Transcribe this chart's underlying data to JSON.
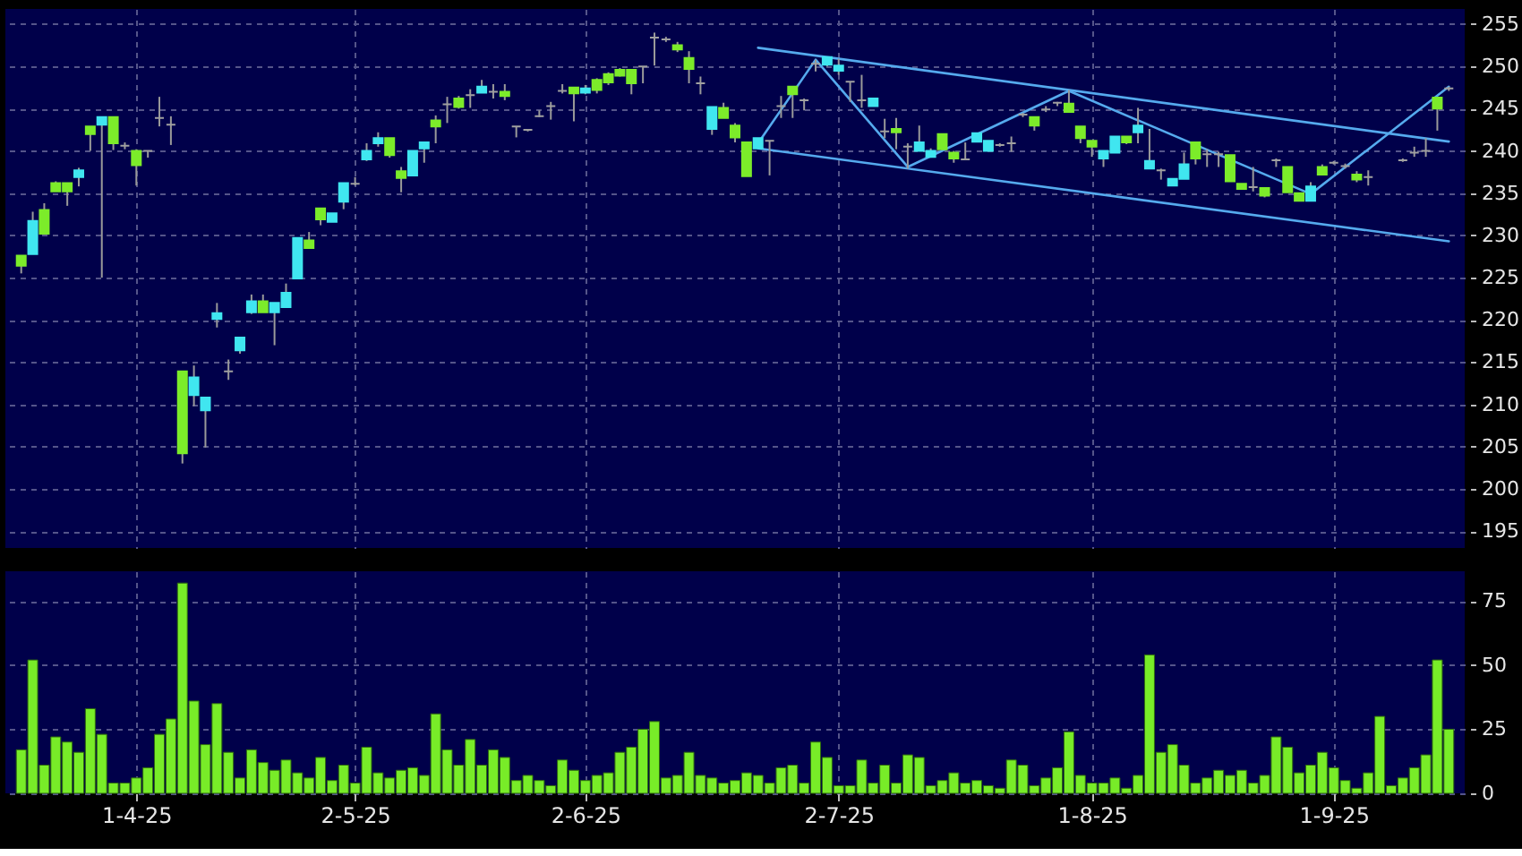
{
  "chart_data": [
    {
      "type": "candlestick",
      "categories": [
        null,
        null,
        null,
        null,
        null,
        null,
        null,
        null,
        null,
        null,
        null,
        null,
        null,
        null,
        null,
        null,
        null,
        null,
        null,
        null,
        null,
        null,
        null,
        null,
        null,
        null,
        null,
        null,
        null,
        null,
        null,
        null,
        null,
        null,
        null,
        null,
        null,
        null,
        null,
        null,
        null,
        null,
        null,
        null,
        null,
        null,
        null,
        null,
        null,
        null,
        null,
        null,
        null,
        null,
        null,
        null,
        null,
        null,
        null,
        null,
        null,
        null,
        null,
        null,
        null,
        null,
        null,
        null,
        null,
        null,
        null,
        null,
        null,
        null,
        null,
        null,
        null,
        null,
        null,
        null,
        null,
        null,
        null,
        null,
        null,
        null,
        null,
        null,
        null,
        null,
        null,
        null,
        null,
        null,
        null,
        null,
        null,
        null,
        null,
        null,
        null,
        null,
        null,
        null,
        null,
        null,
        null,
        null,
        null,
        null,
        null,
        null,
        null,
        null,
        null,
        null,
        null,
        null,
        null,
        null,
        null,
        null,
        null,
        null,
        null
      ],
      "ohlc": [
        [
          227.6,
          227.6,
          225.5,
          226.4
        ],
        [
          227.8,
          232.8,
          227.8,
          231.7
        ],
        [
          233.0,
          233.8,
          230.2,
          230.2
        ],
        [
          236.2,
          236.4,
          235.2,
          235.2
        ],
        [
          236.2,
          236.2,
          233.5,
          235.2
        ],
        [
          236.9,
          238.0,
          235.8,
          237.7
        ],
        [
          242.9,
          242.9,
          240.0,
          242.0
        ],
        [
          243.1,
          244.0,
          225.0,
          244.0
        ],
        [
          244.0,
          244.0,
          240.1,
          240.9
        ],
        [
          240.6,
          241.0,
          240.2,
          240.6
        ],
        [
          240.0,
          240.2,
          235.9,
          238.3
        ],
        [
          240.0,
          240.0,
          239.2,
          240.0
        ],
        [
          243.9,
          246.4,
          242.9,
          243.9
        ],
        [
          243.1,
          244.1,
          240.7,
          243.1
        ],
        [
          213.9,
          213.9,
          203.0,
          204.2
        ],
        [
          211.1,
          214.6,
          209.8,
          213.2
        ],
        [
          209.3,
          210.8,
          204.9,
          210.8
        ],
        [
          220.1,
          222.0,
          219.1,
          220.8
        ],
        [
          213.9,
          215.3,
          212.9,
          213.9
        ],
        [
          216.4,
          217.9,
          216.0,
          217.9
        ],
        [
          220.9,
          223.0,
          220.7,
          222.2
        ],
        [
          222.2,
          223.0,
          220.9,
          220.9
        ],
        [
          220.9,
          222.0,
          217.0,
          222.0
        ],
        [
          221.5,
          224.3,
          221.5,
          223.2
        ],
        [
          224.9,
          229.7,
          224.9,
          229.7
        ],
        [
          229.4,
          230.4,
          228.5,
          228.5
        ],
        [
          233.2,
          233.2,
          231.2,
          231.9
        ],
        [
          231.6,
          232.6,
          231.6,
          232.6
        ],
        [
          234.0,
          236.2,
          233.1,
          236.2
        ],
        [
          236.1,
          236.9,
          235.9,
          236.1
        ],
        [
          239.0,
          240.9,
          238.8,
          240.0
        ],
        [
          240.9,
          242.2,
          240.5,
          241.5
        ],
        [
          241.5,
          241.5,
          239.2,
          239.5
        ],
        [
          237.6,
          238.1,
          235.1,
          236.8
        ],
        [
          237.1,
          240.0,
          237.0,
          240.0
        ],
        [
          240.3,
          241.0,
          238.6,
          241.0
        ],
        [
          243.6,
          244.2,
          240.9,
          242.9
        ],
        [
          245.5,
          246.4,
          243.3,
          245.5
        ],
        [
          246.2,
          246.5,
          245.0,
          245.2
        ],
        [
          246.6,
          247.3,
          245.1,
          246.6
        ],
        [
          246.9,
          248.4,
          246.9,
          247.6
        ],
        [
          247.0,
          247.9,
          246.2,
          247.0
        ],
        [
          247.0,
          247.9,
          246.0,
          246.5
        ],
        [
          242.9,
          242.9,
          241.6,
          242.9
        ],
        [
          242.5,
          242.6,
          242.3,
          242.5
        ],
        [
          244.1,
          244.8,
          244.0,
          244.1
        ],
        [
          245.3,
          245.8,
          243.7,
          245.3
        ],
        [
          247.1,
          247.9,
          246.8,
          247.1
        ],
        [
          247.5,
          247.5,
          243.5,
          246.8
        ],
        [
          246.9,
          247.8,
          246.7,
          247.4
        ],
        [
          248.4,
          248.6,
          246.8,
          247.2
        ],
        [
          249.1,
          249.3,
          247.8,
          248.1
        ],
        [
          249.6,
          249.8,
          248.8,
          248.9
        ],
        [
          249.6,
          249.6,
          246.7,
          248.0
        ],
        [
          250.0,
          250.0,
          248.0,
          250.0
        ],
        [
          253.4,
          254.0,
          250.1,
          253.4
        ],
        [
          253.2,
          253.5,
          252.9,
          253.2
        ],
        [
          252.5,
          252.9,
          251.7,
          252.0
        ],
        [
          251.0,
          251.8,
          248.0,
          249.7
        ],
        [
          248.0,
          248.8,
          246.7,
          248.0
        ],
        [
          242.6,
          245.2,
          241.9,
          245.2
        ],
        [
          245.1,
          245.7,
          243.9,
          243.9
        ],
        [
          243.0,
          243.3,
          241.0,
          241.6
        ],
        [
          241.0,
          241.0,
          237.0,
          237.0
        ],
        [
          240.3,
          241.5,
          240.3,
          241.5
        ],
        [
          241.2,
          241.2,
          237.1,
          241.2
        ],
        [
          245.3,
          246.5,
          243.9,
          245.3
        ],
        [
          247.6,
          247.6,
          243.9,
          246.7
        ],
        [
          246.0,
          246.2,
          244.8,
          246.0
        ],
        [
          250.3,
          250.8,
          249.4,
          250.3
        ],
        [
          250.2,
          251.1,
          250.0,
          251.1
        ],
        [
          249.5,
          250.9,
          249.0,
          250.1
        ],
        [
          248.2,
          248.2,
          245.8,
          248.2
        ],
        [
          246.0,
          249.0,
          245.1,
          246.0
        ],
        [
          245.3,
          246.2,
          245.3,
          246.2
        ],
        [
          242.3,
          243.8,
          241.5,
          242.3
        ],
        [
          242.6,
          243.9,
          240.2,
          242.2
        ],
        [
          240.5,
          240.9,
          237.9,
          240.5
        ],
        [
          240.0,
          243.0,
          240.0,
          241.0
        ],
        [
          239.3,
          240.3,
          239.2,
          240.0
        ],
        [
          242.0,
          242.0,
          240.2,
          240.2
        ],
        [
          239.8,
          240.0,
          238.6,
          239.1
        ],
        [
          239.0,
          241.0,
          239.0,
          239.0
        ],
        [
          241.1,
          242.1,
          241.1,
          242.1
        ],
        [
          240.0,
          241.2,
          240.0,
          241.2
        ],
        [
          240.7,
          240.9,
          240.5,
          240.7
        ],
        [
          240.9,
          241.7,
          239.9,
          240.9
        ],
        [
          244.3,
          244.5,
          244.0,
          244.3
        ],
        [
          244.0,
          244.0,
          242.4,
          243.0
        ],
        [
          244.9,
          245.3,
          244.6,
          244.9
        ],
        [
          245.7,
          245.8,
          245.3,
          245.7
        ],
        [
          245.6,
          247.2,
          244.6,
          244.6
        ],
        [
          242.9,
          242.9,
          240.9,
          241.5
        ],
        [
          241.2,
          241.2,
          239.3,
          240.5
        ],
        [
          239.1,
          240.0,
          238.1,
          240.0
        ],
        [
          239.8,
          241.7,
          239.8,
          241.7
        ],
        [
          241.7,
          241.7,
          240.8,
          241.0
        ],
        [
          242.2,
          245.1,
          240.9,
          243.0
        ],
        [
          237.9,
          242.6,
          237.9,
          238.8
        ],
        [
          237.7,
          237.9,
          236.6,
          237.7
        ],
        [
          235.9,
          236.7,
          235.9,
          236.7
        ],
        [
          236.7,
          239.8,
          236.7,
          238.4
        ],
        [
          241.0,
          241.0,
          238.4,
          239.1
        ],
        [
          239.6,
          240.2,
          238.1,
          239.6
        ],
        [
          239.6,
          239.9,
          238.1,
          239.6
        ],
        [
          239.5,
          239.5,
          236.4,
          236.4
        ],
        [
          236.1,
          236.1,
          235.5,
          235.5
        ],
        [
          235.7,
          238.1,
          235.2,
          235.7
        ],
        [
          235.6,
          235.6,
          234.5,
          234.7
        ],
        [
          238.9,
          239.1,
          238.1,
          238.9
        ],
        [
          238.1,
          238.1,
          235.1,
          235.1
        ],
        [
          235.0,
          235.0,
          234.1,
          234.1
        ],
        [
          234.1,
          236.3,
          234.1,
          235.8
        ],
        [
          238.1,
          238.4,
          237.2,
          237.2
        ],
        [
          238.6,
          238.8,
          238.4,
          238.6
        ],
        [
          238.2,
          238.5,
          237.9,
          238.2
        ],
        [
          237.2,
          237.6,
          236.3,
          236.6
        ],
        [
          236.9,
          237.7,
          235.9,
          236.9
        ],
        null,
        null,
        [
          238.9,
          239.1,
          238.7,
          238.9
        ],
        [
          239.8,
          240.5,
          239.3,
          239.8
        ],
        [
          240.0,
          241.5,
          239.3,
          240.0
        ],
        [
          246.3,
          246.3,
          242.4,
          245.0
        ],
        [
          247.4,
          247.6,
          247.1,
          247.4
        ]
      ],
      "colors": [
        "#7cec2a",
        "#40e6f0",
        "#7cec2a",
        "#7cec2a",
        "#7cec2a",
        "#40e6f0",
        "#7cec2a",
        "#40e6f0",
        "#7cec2a",
        "#a0a0a0",
        "#7cec2a",
        "#a0a0a0",
        "#a0a0a0",
        "#a0a0a0",
        "#7cec2a",
        "#40e6f0",
        "#40e6f0",
        "#40e6f0",
        "#a0a0a0",
        "#40e6f0",
        "#40e6f0",
        "#7cec2a",
        "#40e6f0",
        "#40e6f0",
        "#40e6f0",
        "#7cec2a",
        "#7cec2a",
        "#40e6f0",
        "#40e6f0",
        "#a0a0a0",
        "#40e6f0",
        "#40e6f0",
        "#7cec2a",
        "#7cec2a",
        "#40e6f0",
        "#40e6f0",
        "#7cec2a",
        "#a0a0a0",
        "#7cec2a",
        "#a0a0a0",
        "#40e6f0",
        "#a0a0a0",
        "#7cec2a",
        "#a0a0a0",
        "#a0a0a0",
        "#a0a0a0",
        "#a0a0a0",
        "#a0a0a0",
        "#7cec2a",
        "#40e6f0",
        "#7cec2a",
        "#7cec2a",
        "#7cec2a",
        "#7cec2a",
        "#a0a0a0",
        "#a0a0a0",
        "#a0a0a0",
        "#7cec2a",
        "#7cec2a",
        "#a0a0a0",
        "#40e6f0",
        "#7cec2a",
        "#7cec2a",
        "#7cec2a",
        "#40e6f0",
        "#a0a0a0",
        "#a0a0a0",
        "#7cec2a",
        "#a0a0a0",
        "#a0a0a0",
        "#40e6f0",
        "#40e6f0",
        "#a0a0a0",
        "#a0a0a0",
        "#40e6f0",
        "#a0a0a0",
        "#7cec2a",
        "#a0a0a0",
        "#40e6f0",
        "#40e6f0",
        "#7cec2a",
        "#7cec2a",
        "#a0a0a0",
        "#40e6f0",
        "#40e6f0",
        "#a0a0a0",
        "#a0a0a0",
        "#a0a0a0",
        "#7cec2a",
        "#a0a0a0",
        "#a0a0a0",
        "#7cec2a",
        "#7cec2a",
        "#7cec2a",
        "#40e6f0",
        "#40e6f0",
        "#7cec2a",
        "#40e6f0",
        "#40e6f0",
        "#a0a0a0",
        "#40e6f0",
        "#40e6f0",
        "#7cec2a",
        "#a0a0a0",
        "#a0a0a0",
        "#7cec2a",
        "#7cec2a",
        "#a0a0a0",
        "#7cec2a",
        "#a0a0a0",
        "#7cec2a",
        "#7cec2a",
        "#40e6f0",
        "#7cec2a",
        "#a0a0a0",
        "#a0a0a0",
        "#7cec2a",
        "#a0a0a0",
        null,
        null,
        "#a0a0a0",
        "#a0a0a0",
        "#a0a0a0",
        "#7cec2a",
        "#a0a0a0"
      ],
      "series": [
        {
          "type": "line",
          "color": "#55aaee",
          "values": [
            null,
            null,
            null,
            null,
            null,
            null,
            null,
            null,
            null,
            null,
            null,
            null,
            null,
            null,
            null,
            null,
            null,
            null,
            null,
            null,
            null,
            null,
            null,
            null,
            null,
            null,
            null,
            null,
            null,
            null,
            null,
            null,
            null,
            null,
            null,
            null,
            null,
            null,
            null,
            null,
            null,
            null,
            null,
            null,
            null,
            null,
            null,
            null,
            null,
            null,
            null,
            null,
            null,
            null,
            null,
            null,
            null,
            null,
            null,
            null,
            null,
            null,
            null,
            null,
            252.2,
            null,
            null,
            null,
            null,
            null,
            null,
            null,
            null,
            null,
            null,
            null,
            null,
            null,
            null,
            null,
            null,
            null,
            null,
            null,
            null,
            null,
            null,
            null,
            null,
            null,
            null,
            null,
            null,
            null,
            null,
            null,
            null,
            null,
            null,
            null,
            null,
            null,
            null,
            null,
            null,
            null,
            null,
            null,
            null,
            null,
            null,
            null,
            null,
            null,
            null,
            null,
            null,
            null,
            null,
            null,
            null,
            null,
            null,
            null,
            241.1
          ]
        },
        {
          "type": "line",
          "color": "#55aaee",
          "values": [
            null,
            null,
            null,
            null,
            null,
            null,
            null,
            null,
            null,
            null,
            null,
            null,
            null,
            null,
            null,
            null,
            null,
            null,
            null,
            null,
            null,
            null,
            null,
            null,
            null,
            null,
            null,
            null,
            null,
            null,
            null,
            null,
            null,
            null,
            null,
            null,
            null,
            null,
            null,
            null,
            null,
            null,
            null,
            null,
            null,
            null,
            null,
            null,
            null,
            null,
            null,
            null,
            null,
            null,
            null,
            null,
            null,
            null,
            null,
            null,
            null,
            null,
            null,
            null,
            240.3,
            null,
            null,
            null,
            null,
            null,
            null,
            null,
            null,
            null,
            null,
            null,
            null,
            null,
            null,
            null,
            null,
            null,
            null,
            null,
            null,
            null,
            null,
            null,
            null,
            null,
            null,
            null,
            null,
            null,
            null,
            null,
            null,
            null,
            null,
            null,
            null,
            null,
            null,
            null,
            null,
            null,
            null,
            null,
            null,
            null,
            null,
            null,
            null,
            null,
            null,
            null,
            null,
            null,
            null,
            null,
            null,
            null,
            null,
            null,
            229.3
          ]
        },
        {
          "type": "line",
          "color": "#55aaee",
          "values": [
            null,
            null,
            null,
            null,
            null,
            null,
            null,
            null,
            null,
            null,
            null,
            null,
            null,
            null,
            null,
            null,
            null,
            null,
            null,
            null,
            null,
            null,
            null,
            null,
            null,
            null,
            null,
            null,
            null,
            null,
            null,
            null,
            null,
            null,
            null,
            null,
            null,
            null,
            null,
            null,
            null,
            null,
            null,
            null,
            null,
            null,
            null,
            null,
            null,
            null,
            null,
            null,
            null,
            null,
            null,
            null,
            null,
            null,
            null,
            null,
            null,
            null,
            null,
            null,
            240.9,
            null,
            null,
            null,
            null,
            250.8,
            null,
            null,
            null,
            null,
            null,
            null,
            null,
            238.1,
            null,
            null,
            null,
            null,
            null,
            null,
            null,
            null,
            null,
            null,
            null,
            null,
            null,
            247.1,
            null,
            null,
            null,
            null,
            null,
            null,
            null,
            null,
            null,
            null,
            null,
            null,
            null,
            null,
            null,
            null,
            null,
            null,
            null,
            null,
            234.9,
            null,
            null,
            null,
            null,
            null,
            null,
            null,
            null,
            null,
            null,
            null,
            247.6
          ]
        }
      ],
      "ylim": [
        193.0,
        256.8
      ],
      "yticks": [
        195,
        200,
        205,
        210,
        215,
        220,
        225,
        230,
        235,
        240,
        245,
        250,
        255
      ],
      "grid": true,
      "tick_labels": "y"
    },
    {
      "type": "bar",
      "categories": [
        null,
        null,
        null,
        null,
        null,
        null,
        null,
        null,
        null,
        null,
        "1-4-25",
        null,
        null,
        null,
        null,
        null,
        null,
        null,
        null,
        null,
        null,
        null,
        null,
        null,
        null,
        null,
        null,
        null,
        null,
        "2-5-25",
        null,
        null,
        null,
        null,
        null,
        null,
        null,
        null,
        null,
        null,
        null,
        null,
        null,
        null,
        null,
        null,
        null,
        null,
        null,
        "2-6-25",
        null,
        null,
        null,
        null,
        null,
        null,
        null,
        null,
        null,
        null,
        null,
        null,
        null,
        null,
        null,
        null,
        null,
        null,
        null,
        null,
        null,
        "2-7-25",
        null,
        null,
        null,
        null,
        null,
        null,
        null,
        null,
        null,
        null,
        null,
        null,
        null,
        null,
        null,
        null,
        null,
        null,
        null,
        null,
        null,
        "1-8-25",
        null,
        null,
        null,
        null,
        null,
        null,
        null,
        null,
        null,
        null,
        null,
        null,
        null,
        null,
        null,
        null,
        null,
        null,
        null,
        null,
        "1-9-25",
        null,
        null,
        null,
        null,
        null,
        null,
        null,
        null,
        null,
        null
      ],
      "values": [
        17,
        52,
        11,
        22,
        20,
        16,
        33,
        23,
        4,
        4,
        6,
        10,
        23,
        29,
        82,
        36,
        19,
        35,
        16,
        6,
        17,
        12,
        9,
        13,
        8,
        6,
        14,
        5,
        11,
        4,
        18,
        8,
        6,
        9,
        10,
        7,
        31,
        17,
        11,
        21,
        11,
        17,
        14,
        5,
        7,
        5,
        3,
        13,
        9,
        5,
        7,
        8,
        16,
        18,
        25,
        28,
        6,
        7,
        16,
        7,
        6,
        4,
        5,
        8,
        7,
        4,
        10,
        11,
        4,
        20,
        14,
        3,
        3,
        13,
        4,
        11,
        4,
        15,
        14,
        3,
        5,
        8,
        4,
        5,
        3,
        2,
        13,
        11,
        3,
        6,
        10,
        24,
        7,
        4,
        4,
        6,
        2,
        7,
        54,
        16,
        19,
        11,
        4,
        6,
        9,
        7,
        9,
        4,
        7,
        22,
        18,
        8,
        11,
        16,
        10,
        5,
        2,
        8,
        30,
        3,
        6,
        10,
        15,
        52,
        25
      ],
      "color": "#78ec28",
      "ylim": [
        0,
        86.6
      ],
      "yticks": [
        0,
        25,
        50,
        75
      ],
      "grid": true
    }
  ]
}
